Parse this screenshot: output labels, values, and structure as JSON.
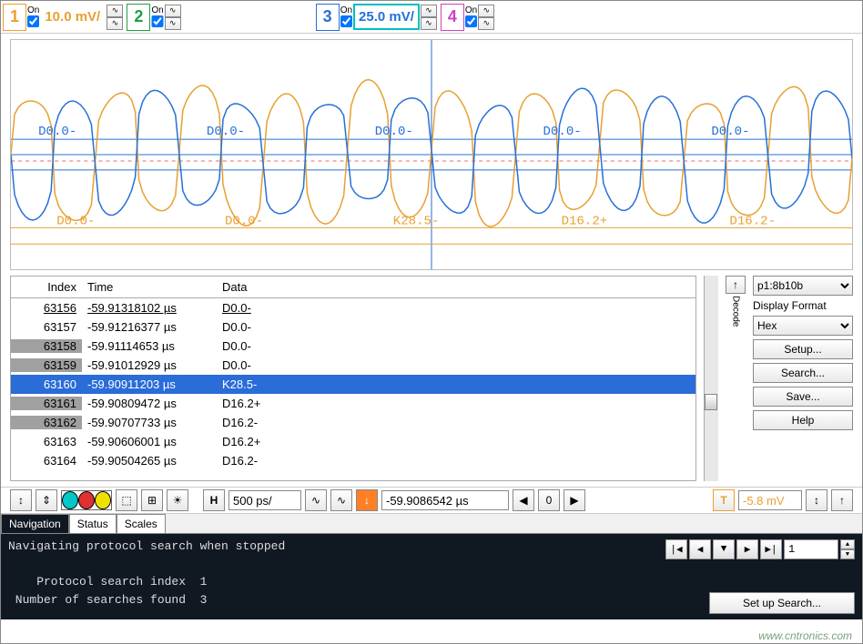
{
  "channels": [
    {
      "num": "1",
      "color": "#e8a030",
      "on_label": "On",
      "checked": true,
      "scale": "10.0 mV/",
      "highlighted": false
    },
    {
      "num": "2",
      "color": "#20a040",
      "on_label": "On",
      "checked": true,
      "scale": "",
      "highlighted": false
    },
    {
      "num": "3",
      "color": "#2670d8",
      "on_label": "On",
      "checked": true,
      "scale": "25.0 mV/",
      "highlighted": true
    },
    {
      "num": "4",
      "color": "#d040c0",
      "on_label": "On",
      "checked": true,
      "scale": "",
      "highlighted": false
    }
  ],
  "waveform": {
    "bg": "#ffffff",
    "grid_color": "#d8d8d8",
    "axis_color": "#2670d8",
    "trace_blue": "#2670d8",
    "trace_orange": "#e8a030",
    "red_dash": "#e07060",
    "labels_top": [
      "D0.0-",
      "D0.0-",
      "D0.0-",
      "D0.0-",
      "D0.0-",
      "D"
    ],
    "labels_top_color": "#2670d8",
    "labels_bottom": [
      "D0.0-",
      "D0.0-",
      "K28.5-",
      "D16.2+",
      "D16.2-"
    ],
    "labels_bottom_color": "#e8a030"
  },
  "decode": {
    "columns": [
      "Index",
      "Time",
      "Data"
    ],
    "col_widths": [
      "78px",
      "148px",
      "auto"
    ],
    "rows": [
      {
        "idx": "63156",
        "time": "-59.91318102 µs",
        "data": "D0.0-",
        "shaded": false,
        "underline": true
      },
      {
        "idx": "63157",
        "time": "-59.91216377 µs",
        "data": "D0.0-",
        "shaded": false,
        "underline": false
      },
      {
        "idx": "63158",
        "time": "-59.91114653 µs",
        "data": "D0.0-",
        "shaded": true,
        "underline": false
      },
      {
        "idx": "63159",
        "time": "-59.91012929 µs",
        "data": "D0.0-",
        "shaded": true,
        "underline": false
      },
      {
        "idx": "63160",
        "time": "-59.90911203 µs",
        "data": "K28.5-",
        "shaded": false,
        "selected": true
      },
      {
        "idx": "63161",
        "time": "-59.90809472 µs",
        "data": "D16.2+",
        "shaded": true,
        "underline": false
      },
      {
        "idx": "63162",
        "time": "-59.90707733 µs",
        "data": "D16.2-",
        "shaded": true,
        "underline": false
      },
      {
        "idx": "63163",
        "time": "-59.90606001 µs",
        "data": "D16.2+",
        "shaded": false,
        "underline": false
      },
      {
        "idx": "63164",
        "time": "-59.90504265 µs",
        "data": "D16.2-",
        "shaded": false,
        "underline": false
      }
    ],
    "scroll_btn": "▲",
    "decode_side_label": "Decode"
  },
  "side": {
    "protocol": "p1:8b10b",
    "display_format_label": "Display Format",
    "display_format": "Hex",
    "buttons": [
      "Setup...",
      "Search...",
      "Save...",
      "Help"
    ]
  },
  "midbar": {
    "arrow_icons": [
      "↕",
      "⇕"
    ],
    "palette": [
      "#00c8c8",
      "#e03030",
      "#f0e000"
    ],
    "misc_icons": [
      "⬚",
      "⊞",
      "☀"
    ],
    "h_label": "H",
    "timebase": "500 ps/",
    "wave_icons": [
      "∿",
      "∿"
    ],
    "trig_arrow": "↓",
    "delay": "-59.9086542 µs",
    "nav": [
      "◀",
      "0",
      "▶"
    ],
    "t_label": "T",
    "t_value": "-5.8 mV",
    "t_color": "#e8a030",
    "end_icons": [
      "↕",
      "↑"
    ]
  },
  "tabs": [
    "Navigation",
    "Status",
    "Scales"
  ],
  "active_tab": 0,
  "console": {
    "line1": "Navigating protocol search when stopped",
    "line2": "    Protocol search index  1",
    "line3": " Number of searches found  3",
    "nav_buttons": [
      "|◀",
      "◀",
      "▼",
      "▶",
      "▶|"
    ],
    "nav_value": "1",
    "setup_label": "Set up Search..."
  },
  "watermark": "www.cntronics.com"
}
